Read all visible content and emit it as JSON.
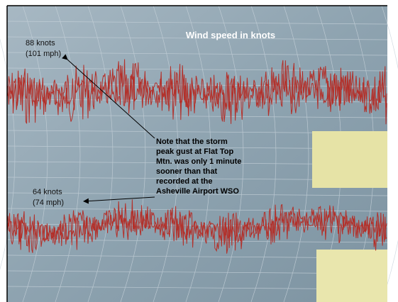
{
  "title": "Wind speed in knots",
  "annotations": [
    {
      "lines": [
        "88 knots",
        "(101 mph)"
      ]
    },
    {
      "lines": [
        "64 knots",
        "(74 mph)"
      ]
    }
  ],
  "note": {
    "lines": [
      "Note that the storm",
      "peak gust at Flat Top",
      "Mtn. was only 1 minute",
      "sooner than that",
      "recorded at the",
      "Asheville Airport WSO"
    ]
  }
}
